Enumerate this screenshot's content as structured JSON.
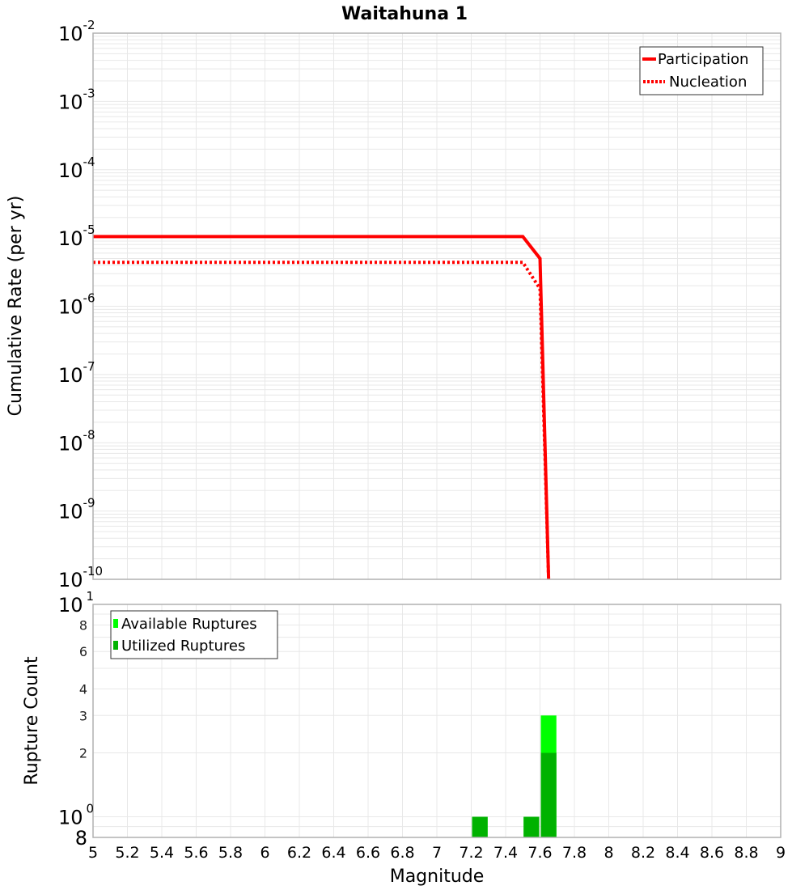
{
  "chart_data": [
    {
      "type": "line",
      "title": "Waitahuna 1",
      "xlabel": "Magnitude",
      "ylabel": "Cumulative Rate (per yr)",
      "yscale": "log",
      "xlim": [
        5,
        9
      ],
      "ylim": [
        1e-10,
        0.01
      ],
      "ytick_labels": [
        {
          "base": "10",
          "exp": "-2",
          "value": -2
        },
        {
          "base": "10",
          "exp": "-3",
          "value": -3
        },
        {
          "base": "10",
          "exp": "-4",
          "value": -4
        },
        {
          "base": "10",
          "exp": "-5",
          "value": -5
        },
        {
          "base": "10",
          "exp": "-6",
          "value": -6
        },
        {
          "base": "10",
          "exp": "-7",
          "value": -7
        },
        {
          "base": "10",
          "exp": "-8",
          "value": -8
        },
        {
          "base": "10",
          "exp": "-9",
          "value": -9
        },
        {
          "base": "10",
          "exp": "-10",
          "value": -10
        }
      ],
      "grid": true,
      "legend_position": "upper right",
      "series": [
        {
          "name": "Participation",
          "style": "solid",
          "color": "#ff0000",
          "x": [
            5.0,
            7.25,
            7.5,
            7.6,
            7.65
          ],
          "y": [
            1.05e-05,
            1.05e-05,
            1.05e-05,
            5e-06,
            1e-10
          ]
        },
        {
          "name": "Nucleation",
          "style": "dotted",
          "color": "#ff0000",
          "x": [
            5.0,
            7.25,
            7.5,
            7.6,
            7.65
          ],
          "y": [
            4.4e-06,
            4.4e-06,
            4.4e-06,
            1.8e-06,
            1e-10
          ]
        }
      ]
    },
    {
      "type": "bar",
      "xlabel": "Magnitude",
      "ylabel": "Rupture Count",
      "yscale": "log",
      "xlim": [
        5,
        9
      ],
      "ylim": [
        0.8,
        10
      ],
      "ytick_labels": [
        {
          "text": "8",
          "value": 8,
          "style": "small"
        },
        {
          "text": "6",
          "value": 6,
          "style": "small"
        },
        {
          "text": "4",
          "value": 4,
          "style": "small"
        },
        {
          "text": "3",
          "value": 3,
          "style": "small"
        },
        {
          "text": "2",
          "value": 2,
          "style": "small"
        }
      ],
      "ytick_pow_labels": [
        {
          "base": "10",
          "exp": "1",
          "value": 10
        },
        {
          "base": "10",
          "exp": "0",
          "value": 1
        }
      ],
      "ybottom_label": "8",
      "grid": true,
      "legend_position": "upper left",
      "bin_width": 0.1,
      "series": [
        {
          "name": "Available Ruptures",
          "color": "#00ff00",
          "x": [
            7.25,
            7.55,
            7.65
          ],
          "values": [
            1,
            1,
            3
          ]
        },
        {
          "name": "Utilized Ruptures",
          "color": "#00b200",
          "x": [
            7.25,
            7.55,
            7.65
          ],
          "values": [
            1,
            1,
            2
          ]
        }
      ]
    }
  ],
  "x_ticks": [
    "5",
    "5.2",
    "5.4",
    "5.6",
    "5.8",
    "6",
    "6.2",
    "6.4",
    "6.6",
    "6.8",
    "7",
    "7.2",
    "7.4",
    "7.6",
    "7.8",
    "8",
    "8.2",
    "8.4",
    "8.6",
    "8.8",
    "9"
  ],
  "labels": {
    "title": "Waitahuna 1",
    "top_ylabel": "Cumulative Rate (per yr)",
    "bottom_ylabel": "Rupture Count",
    "xlabel": "Magnitude",
    "legend_participation": "Participation",
    "legend_nucleation": "Nucleation",
    "legend_available": "Available Ruptures",
    "legend_utilized": "Utilized Ruptures"
  },
  "colors": {
    "line": "#ff0000",
    "available": "#00ff00",
    "utilized": "#00b200",
    "grid": "#e8e8e8",
    "frame": "#b0b0b0"
  }
}
